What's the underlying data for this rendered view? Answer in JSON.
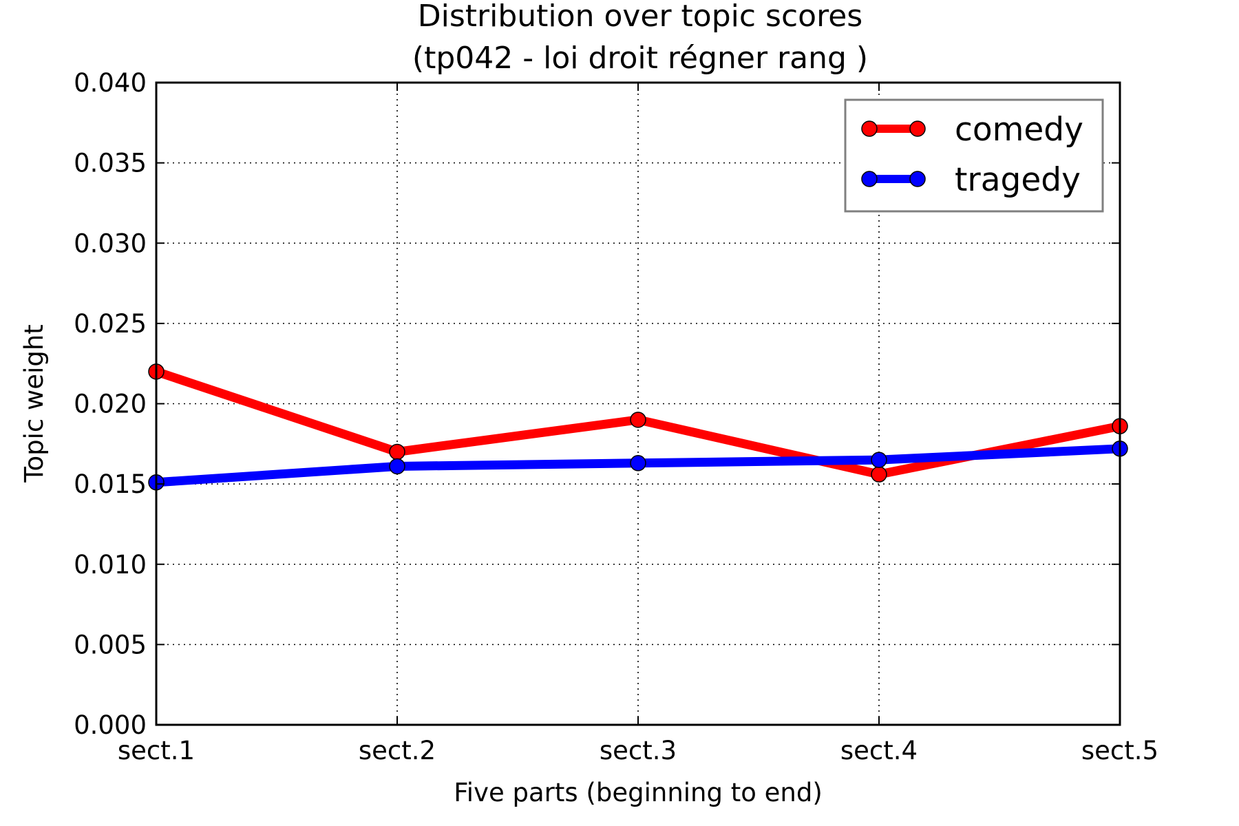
{
  "chart_data": {
    "type": "line",
    "title": "Distribution over topic scores",
    "subtitle": "(tp042 - loi droit régner rang )",
    "xlabel": "Five parts (beginning to end)",
    "ylabel": "Topic weight",
    "categories": [
      "sect.1",
      "sect.2",
      "sect.3",
      "sect.4",
      "sect.5"
    ],
    "ylim": [
      0,
      0.04
    ],
    "yticks": [
      "0.000",
      "0.005",
      "0.010",
      "0.015",
      "0.020",
      "0.025",
      "0.030",
      "0.035",
      "0.040"
    ],
    "grid": true,
    "legend_position": "top-right",
    "series": [
      {
        "name": "comedy",
        "color": "#ff0000",
        "values": [
          0.022,
          0.017,
          0.019,
          0.0156,
          0.0186
        ]
      },
      {
        "name": "tragedy",
        "color": "#0000ff",
        "values": [
          0.0151,
          0.0161,
          0.0163,
          0.0165,
          0.0172
        ]
      }
    ]
  }
}
